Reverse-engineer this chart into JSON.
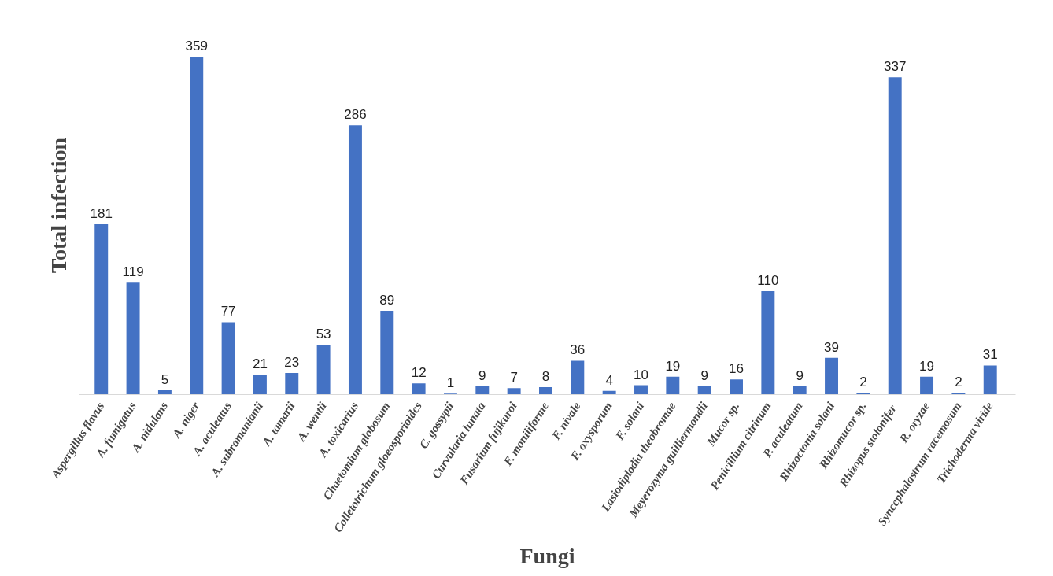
{
  "chart_data": {
    "type": "bar",
    "xlabel": "Fungi",
    "ylabel": "Total infection",
    "categories": [
      "Aspergillus flavus",
      "A. fumigatus",
      "A. nidulans",
      "A. niger",
      "A. aculeatus",
      "A. subramanianii",
      "A. tamarii",
      "A. wentii",
      "A. toxicarius",
      "Chaetomium globosum",
      "Colletotrichum gloeosporioides",
      "C. gossypii",
      "Curvularia lunata",
      "Fusarium fujikuroi",
      "F. moniliforme",
      "F. nivale",
      "F. oxysporum",
      "F. solani",
      "Lasiodiplodia theobromae",
      "Meyerozyma guilliermondii",
      "Mucor sp.",
      "Penicillium citrinum",
      "P. aculeatum",
      "Rhizoctonia solani",
      "Rhizomucor sp.",
      "Rhizopus  stolonifer",
      "R. oryzae",
      "Syncephalastrum racemosum",
      "Trichoderma viride"
    ],
    "values": [
      181,
      119,
      5,
      359,
      77,
      21,
      23,
      53,
      286,
      89,
      12,
      1,
      9,
      7,
      8,
      36,
      4,
      10,
      19,
      9,
      16,
      110,
      9,
      39,
      2,
      337,
      19,
      2,
      31
    ],
    "color": "#4472c4",
    "data_labels": true,
    "grid": false
  }
}
